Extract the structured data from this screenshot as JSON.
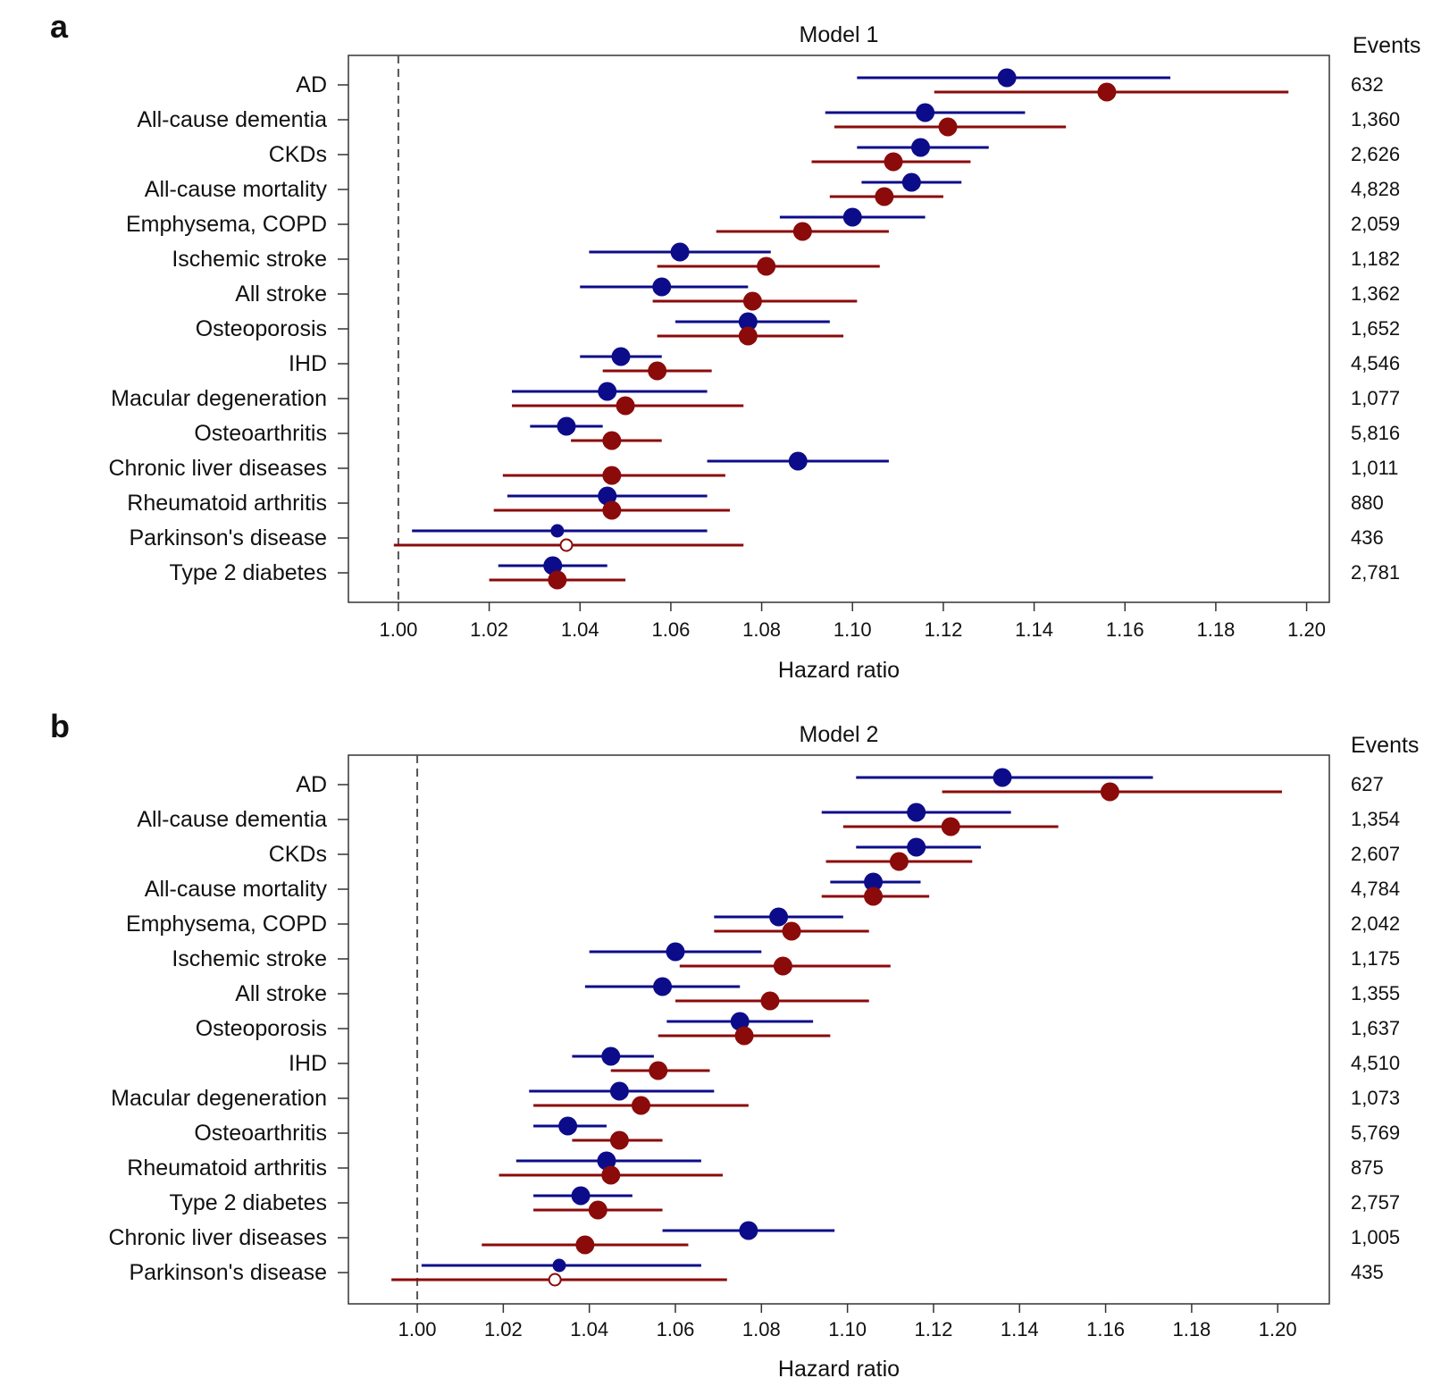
{
  "colors": {
    "series1": "#0c0c8a",
    "series2": "#8b0a0a",
    "axis": "#333333",
    "ref": "#555555"
  },
  "chart_data": [
    {
      "type": "scatter",
      "panel_label": "a",
      "title": "Model 1",
      "xlabel": "Hazard ratio",
      "events_header": "Events",
      "xlim": [
        0.989,
        1.205
      ],
      "reference_line": 1.0,
      "ticks": [
        1.0,
        1.02,
        1.04,
        1.06,
        1.08,
        1.1,
        1.12,
        1.14,
        1.16,
        1.18,
        1.2
      ],
      "tick_labels": [
        "1.00",
        "1.02",
        "1.04",
        "1.06",
        "1.08",
        "1.10",
        "1.12",
        "1.14",
        "1.16",
        "1.18",
        "1.20"
      ],
      "categories": [
        "AD",
        "All-cause dementia",
        "CKDs",
        "All-cause mortality",
        "Emphysema, COPD",
        "Ischemic stroke",
        "All stroke",
        "Osteoporosis",
        "IHD",
        "Macular degeneration",
        "Osteoarthritis",
        "Chronic liver diseases",
        "Rheumatoid arthritis",
        "Parkinson's disease",
        "Type 2 diabetes"
      ],
      "events": [
        "632",
        "1,360",
        "2,626",
        "4,828",
        "2,059",
        "1,182",
        "1,362",
        "1,652",
        "4,546",
        "1,077",
        "5,816",
        "1,011",
        "880",
        "436",
        "2,781"
      ],
      "series": [
        {
          "name": "series-1",
          "est": [
            1.134,
            1.116,
            1.115,
            1.113,
            1.1,
            1.062,
            1.058,
            1.077,
            1.049,
            1.046,
            1.037,
            1.088,
            1.046,
            1.035,
            1.034
          ],
          "lo": [
            1.101,
            1.094,
            1.101,
            1.102,
            1.084,
            1.042,
            1.04,
            1.061,
            1.04,
            1.025,
            1.029,
            1.068,
            1.024,
            1.003,
            1.022
          ],
          "hi": [
            1.17,
            1.138,
            1.13,
            1.124,
            1.116,
            1.082,
            1.077,
            1.095,
            1.058,
            1.068,
            1.045,
            1.108,
            1.068,
            1.068,
            1.046
          ],
          "size": [
            "l",
            "l",
            "l",
            "l",
            "l",
            "l",
            "l",
            "l",
            "l",
            "l",
            "l",
            "l",
            "l",
            "s",
            "l"
          ]
        },
        {
          "name": "series-2",
          "est": [
            1.156,
            1.121,
            1.109,
            1.107,
            1.089,
            1.081,
            1.078,
            1.077,
            1.057,
            1.05,
            1.047,
            1.047,
            1.047,
            1.037,
            1.035
          ],
          "lo": [
            1.118,
            1.096,
            1.091,
            1.095,
            1.07,
            1.057,
            1.056,
            1.057,
            1.045,
            1.025,
            1.038,
            1.023,
            1.021,
            0.999,
            1.02
          ],
          "hi": [
            1.196,
            1.147,
            1.126,
            1.12,
            1.108,
            1.106,
            1.101,
            1.098,
            1.069,
            1.076,
            1.058,
            1.072,
            1.073,
            1.076,
            1.05
          ],
          "size": [
            "l",
            "l",
            "l",
            "l",
            "l",
            "l",
            "l",
            "l",
            "l",
            "l",
            "l",
            "l",
            "l",
            "open",
            "l"
          ]
        }
      ]
    },
    {
      "type": "scatter",
      "panel_label": "b",
      "title": "Model 2",
      "xlabel": "Hazard ratio",
      "events_header": "Events",
      "xlim": [
        0.984,
        1.212
      ],
      "reference_line": 1.0,
      "ticks": [
        1.0,
        1.02,
        1.04,
        1.06,
        1.08,
        1.1,
        1.12,
        1.14,
        1.16,
        1.18,
        1.2
      ],
      "tick_labels": [
        "1.00",
        "1.02",
        "1.04",
        "1.06",
        "1.08",
        "1.10",
        "1.12",
        "1.14",
        "1.16",
        "1.18",
        "1.20"
      ],
      "categories": [
        "AD",
        "All-cause dementia",
        "CKDs",
        "All-cause mortality",
        "Emphysema, COPD",
        "Ischemic stroke",
        "All stroke",
        "Osteoporosis",
        "IHD",
        "Macular degeneration",
        "Osteoarthritis",
        "Rheumatoid arthritis",
        "Type 2 diabetes",
        "Chronic liver diseases",
        "Parkinson's disease"
      ],
      "events": [
        "627",
        "1,354",
        "2,607",
        "4,784",
        "2,042",
        "1,175",
        "1,355",
        "1,637",
        "4,510",
        "1,073",
        "5,769",
        "875",
        "2,757",
        "1,005",
        "435"
      ],
      "series": [
        {
          "name": "series-1",
          "est": [
            1.136,
            1.116,
            1.116,
            1.106,
            1.084,
            1.06,
            1.057,
            1.075,
            1.045,
            1.047,
            1.035,
            1.044,
            1.038,
            1.077,
            1.033
          ],
          "lo": [
            1.102,
            1.094,
            1.102,
            1.096,
            1.069,
            1.04,
            1.039,
            1.058,
            1.036,
            1.026,
            1.027,
            1.023,
            1.027,
            1.057,
            1.001
          ],
          "hi": [
            1.171,
            1.138,
            1.131,
            1.117,
            1.099,
            1.08,
            1.075,
            1.092,
            1.055,
            1.069,
            1.044,
            1.066,
            1.05,
            1.097,
            1.066
          ],
          "size": [
            "l",
            "l",
            "l",
            "l",
            "l",
            "l",
            "l",
            "l",
            "l",
            "l",
            "l",
            "l",
            "l",
            "l",
            "s"
          ]
        },
        {
          "name": "series-2",
          "est": [
            1.161,
            1.124,
            1.112,
            1.106,
            1.087,
            1.085,
            1.082,
            1.076,
            1.056,
            1.052,
            1.047,
            1.045,
            1.042,
            1.039,
            1.032
          ],
          "lo": [
            1.122,
            1.099,
            1.095,
            1.094,
            1.069,
            1.061,
            1.06,
            1.056,
            1.045,
            1.027,
            1.036,
            1.019,
            1.027,
            1.015,
            0.994
          ],
          "hi": [
            1.201,
            1.149,
            1.129,
            1.119,
            1.105,
            1.11,
            1.105,
            1.096,
            1.068,
            1.077,
            1.057,
            1.071,
            1.057,
            1.063,
            1.072
          ],
          "size": [
            "l",
            "l",
            "l",
            "l",
            "l",
            "l",
            "l",
            "l",
            "l",
            "l",
            "l",
            "l",
            "l",
            "l",
            "open"
          ]
        }
      ]
    }
  ]
}
